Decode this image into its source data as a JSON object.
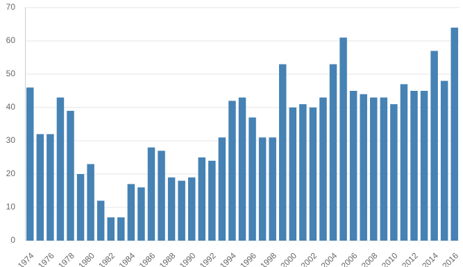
{
  "chart_data": {
    "type": "bar",
    "categories": [
      "1974",
      null,
      "1976",
      null,
      "1978",
      null,
      "1980",
      null,
      "1982",
      null,
      "1984",
      null,
      "1986",
      null,
      "1988",
      null,
      "1990",
      null,
      "1992",
      null,
      "1994",
      null,
      "1996",
      null,
      "1998",
      null,
      "2000",
      null,
      "2002",
      null,
      "2004",
      null,
      "2006",
      null,
      "2008",
      null,
      "2010",
      null,
      "2012",
      null,
      "2014",
      null,
      "2016"
    ],
    "values": [
      46,
      32,
      32,
      43,
      39,
      20,
      23,
      12,
      7,
      7,
      17,
      16,
      28,
      27,
      19,
      18,
      19,
      25,
      24,
      31,
      42,
      43,
      37,
      31,
      31,
      53,
      40,
      41,
      40,
      43,
      53,
      61,
      45,
      44,
      43,
      43,
      41,
      47,
      45,
      45,
      57,
      48,
      64
    ],
    "color": "#4682b4",
    "ylim": [
      0,
      70
    ],
    "yticks": [
      0,
      10,
      20,
      30,
      40,
      50,
      60,
      70
    ],
    "grid": true
  }
}
